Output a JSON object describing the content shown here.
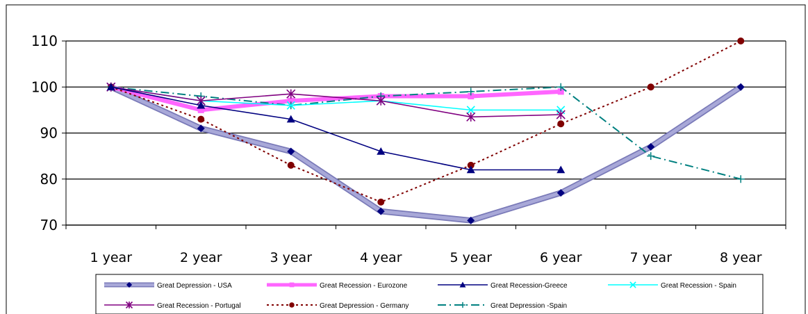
{
  "chart_data": {
    "type": "line",
    "title": "",
    "xlabel": "",
    "ylabel": "",
    "categories": [
      "1 year",
      "2 year",
      "3 year",
      "4 year",
      "5 year",
      "6 year",
      "7 year",
      "8 year"
    ],
    "ylim": [
      70,
      110
    ],
    "yticks": [
      "70",
      "80",
      "90",
      "100",
      "110"
    ],
    "grid": "horizontal",
    "legend_position": "bottom",
    "series": [
      {
        "name": "Great Depression - USA",
        "color": "#8c8cc8",
        "marker": "diamond",
        "line": "thick-solid",
        "values": [
          100,
          91,
          86,
          73,
          71,
          77,
          87,
          100
        ]
      },
      {
        "name": "Great Recession - Eurozone",
        "color": "#ff66ff",
        "marker": "square",
        "line": "thick-solid",
        "values": [
          100,
          95,
          97,
          98,
          98,
          99,
          null,
          null
        ]
      },
      {
        "name": "Great Recession-Greece",
        "color": "#000080",
        "marker": "triangle",
        "line": "solid",
        "values": [
          100,
          96,
          93,
          86,
          82,
          82,
          null,
          null
        ]
      },
      {
        "name": "Great Recession - Spain",
        "color": "#00ffff",
        "marker": "x",
        "line": "solid",
        "values": [
          100,
          97,
          96,
          97,
          95,
          95,
          null,
          null
        ]
      },
      {
        "name": "Great Recession - Portugal",
        "color": "#800080",
        "marker": "star",
        "line": "solid",
        "values": [
          100,
          97,
          98.5,
          97,
          93.5,
          94,
          null,
          null
        ]
      },
      {
        "name": "Great Depression - Germany",
        "color": "#800000",
        "marker": "circle",
        "line": "dotted",
        "values": [
          100,
          93,
          83,
          75,
          83,
          92,
          100,
          110
        ]
      },
      {
        "name": "Great Depression -Spain",
        "color": "#008080",
        "marker": "plus",
        "line": "dashdot",
        "values": [
          100,
          98,
          96,
          98,
          99,
          100,
          85,
          80
        ]
      }
    ]
  }
}
